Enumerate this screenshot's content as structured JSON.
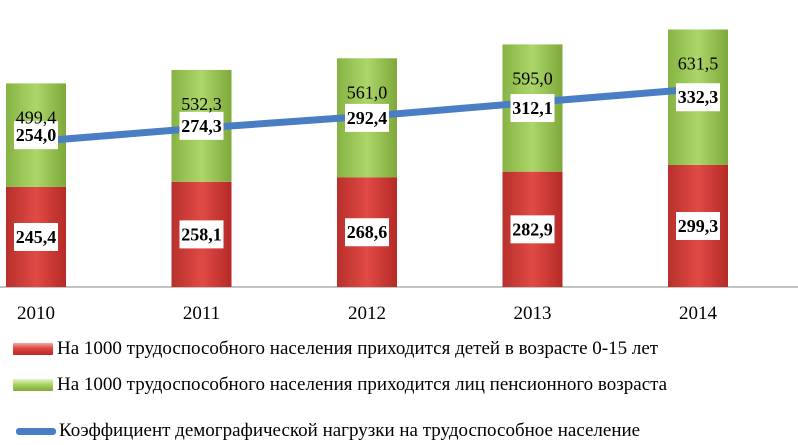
{
  "chart_data": {
    "type": "bar",
    "categories": [
      "2010",
      "2011",
      "2012",
      "2013",
      "2014"
    ],
    "series": [
      {
        "name": "На 1000 трудоспособного населения приходится детей в возрасте 0-15 лет",
        "values": [
          245.4,
          258.1,
          268.6,
          282.9,
          299.3
        ],
        "labels": [
          "245,4",
          "258,1",
          "268,6",
          "282,9",
          "299,3"
        ],
        "color": "#d93b36"
      },
      {
        "name": "На 1000 трудоспособного населения приходится лиц пенсионного возраста",
        "values": [
          254.0,
          274.3,
          292.4,
          312.1,
          332.3
        ],
        "labels": [
          "254,0",
          "274,3",
          "292,4",
          "312,1",
          "332,3"
        ],
        "color": "#9bc750"
      },
      {
        "name": "Коэффициент демографической нагрузки на трудоспособное население",
        "type": "line",
        "values": [
          499.4,
          532.3,
          561.0,
          595.0,
          631.5
        ],
        "labels": [
          "499,4",
          "532,3",
          "561,0",
          "595,0",
          "631,5"
        ],
        "color": "#4a7ec4"
      }
    ],
    "stacked": true,
    "ylim": [
      0,
      650
    ],
    "grid": false,
    "legend_position": "bottom"
  }
}
